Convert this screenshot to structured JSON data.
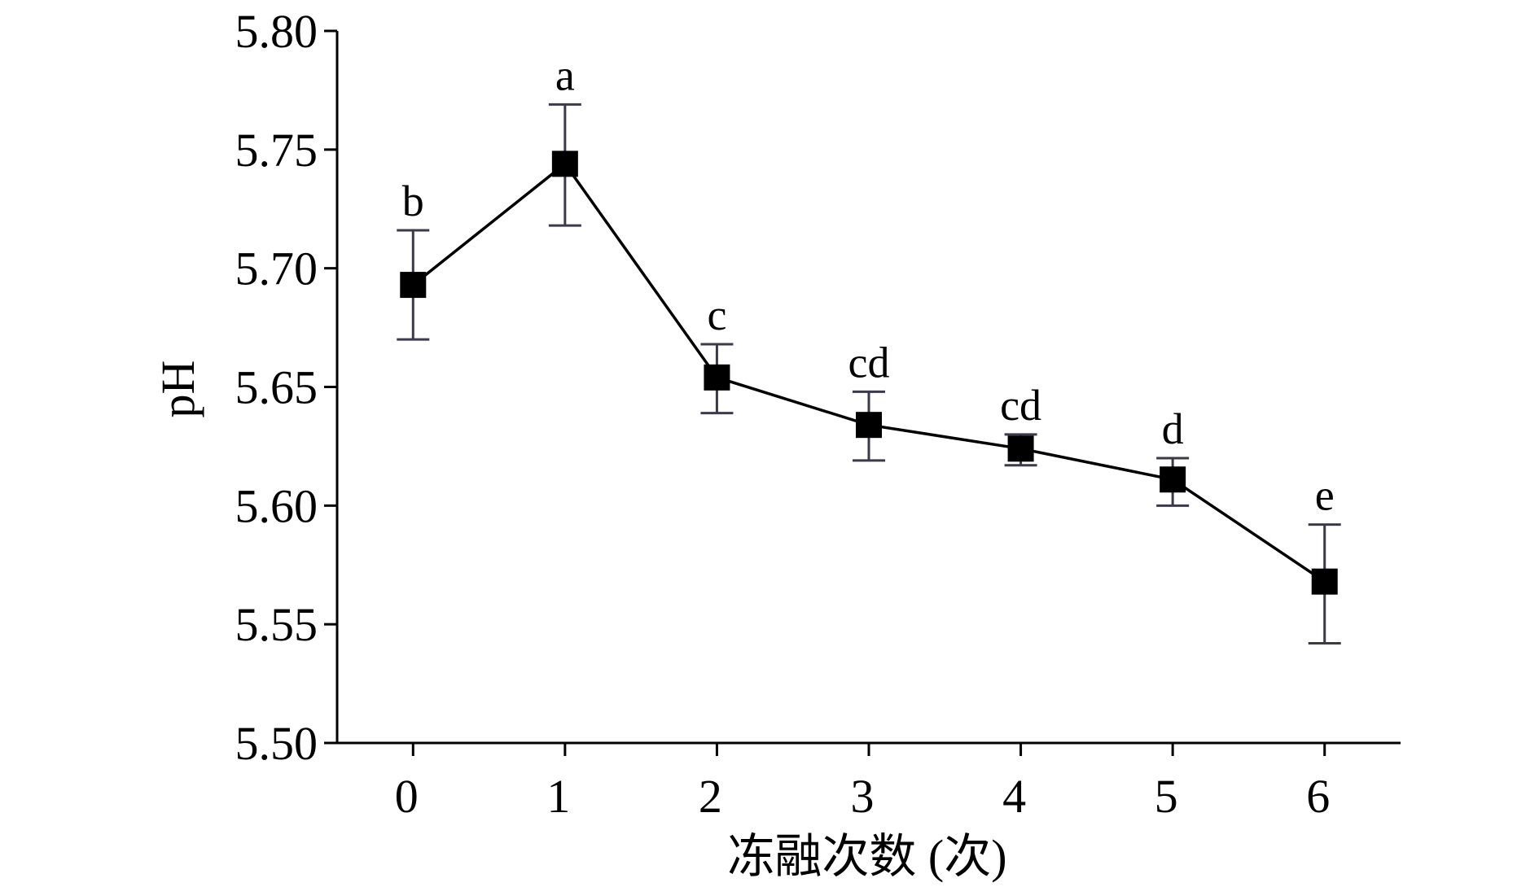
{
  "chart_data": {
    "type": "line",
    "title": "",
    "xlabel": "冻融次数 (次)",
    "ylabel": "pH",
    "x": [
      0,
      1,
      2,
      3,
      4,
      5,
      6
    ],
    "x_tick_labels": [
      "0",
      "1",
      "2",
      "3",
      "4",
      "5",
      "6"
    ],
    "y_tick_labels": [
      "5.50",
      "5.55",
      "5.60",
      "5.65",
      "5.70",
      "5.75",
      "5.80"
    ],
    "ylim": [
      5.5,
      5.8
    ],
    "xlim": [
      -0.5,
      6.5
    ],
    "grid": false,
    "marker": "square",
    "series": [
      {
        "values": [
          5.693,
          5.744,
          5.654,
          5.634,
          5.624,
          5.611,
          5.568
        ],
        "error_upper": [
          5.716,
          5.769,
          5.668,
          5.648,
          5.63,
          5.62,
          5.592
        ],
        "error_lower": [
          5.67,
          5.718,
          5.639,
          5.619,
          5.617,
          5.6,
          5.542
        ],
        "significance_labels": [
          "b",
          "a",
          "c",
          "cd",
          "cd",
          "d",
          "e"
        ]
      }
    ],
    "colors": {
      "line": "#000000",
      "marker": "#000000",
      "error_bar": "#3a3a4a",
      "axis": "#000000"
    }
  }
}
